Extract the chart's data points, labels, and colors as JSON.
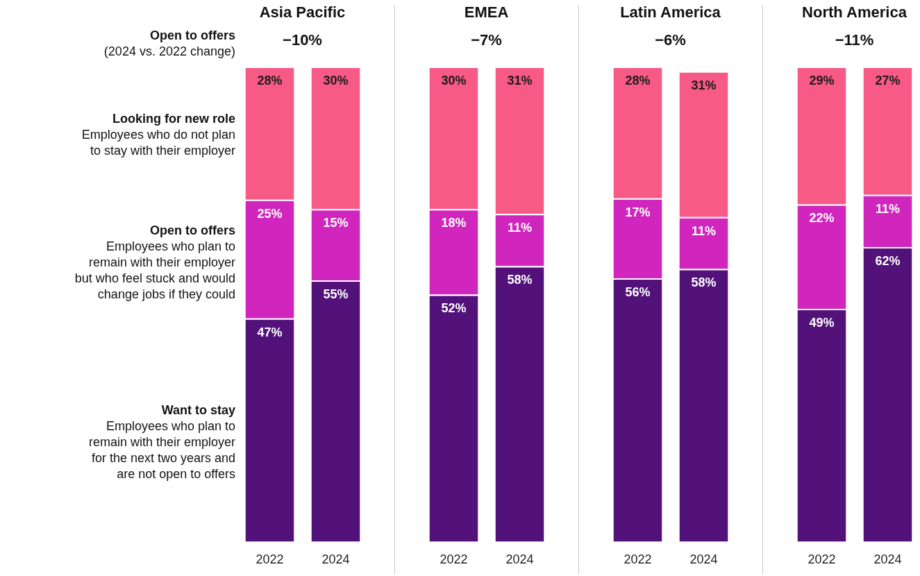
{
  "chart_data": [
    {
      "type": "bar",
      "title": "Asia Pacific",
      "subtitle": "−10%",
      "stacked": true,
      "categories": [
        "2022",
        "2024"
      ],
      "annotations": [
        "Open to offers",
        "(2024 vs. 2022 change)",
        "Employees who do not plan to stay with their employer",
        "Employees who plan to remain with their employer but who feel stuck and would change jobs if they could",
        "Employees who plan to remain with their employer for the next two years and are not open to offers"
      ],
      "series": [
        {
          "name": "Want to stay",
          "color": "#52127a",
          "values": [
            47,
            55
          ],
          "value_labels": [
            "47%",
            "55%"
          ]
        },
        {
          "name": "Open to offers",
          "color": "#d026bd",
          "values": [
            25,
            15
          ],
          "value_labels": [
            "25%",
            "15%"
          ]
        },
        {
          "name": "Looking for new role",
          "color": "#f75a85",
          "values": [
            28,
            30
          ],
          "value_labels": [
            "28%",
            "30%"
          ]
        }
      ]
    },
    {
      "type": "bar",
      "title": "EMEA",
      "subtitle": "−7%",
      "stacked": true,
      "categories": [
        "2022",
        "2024"
      ],
      "series": [
        {
          "color": "#52127a",
          "values": [
            52,
            58
          ],
          "value_labels": [
            "52%",
            "58%"
          ]
        },
        {
          "color": "#d026bd",
          "values": [
            18,
            11
          ],
          "value_labels": [
            "18%",
            "11%"
          ]
        },
        {
          "color": "#f75a85",
          "values": [
            30,
            31
          ],
          "value_labels": [
            "30%",
            "31%"
          ]
        }
      ]
    },
    {
      "type": "bar",
      "title": "Latin America",
      "subtitle": "−6%",
      "stacked": true,
      "categories": [
        "2022",
        "2024"
      ],
      "series": [
        {
          "color": "#52127a",
          "values": [
            56,
            58
          ],
          "value_labels": [
            "56%",
            "58%"
          ]
        },
        {
          "color": "#d026bd",
          "values": [
            17,
            11
          ],
          "value_labels": [
            "17%",
            "11%"
          ]
        },
        {
          "color": "#f75a85",
          "values": [
            28,
            31
          ],
          "value_labels": [
            "28%",
            "31%"
          ]
        }
      ]
    },
    {
      "type": "bar",
      "title": "North America",
      "subtitle": "−11%",
      "stacked": true,
      "categories": [
        "2022",
        "2024"
      ],
      "series": [
        {
          "color": "#52127a",
          "values": [
            49,
            62
          ],
          "value_labels": [
            "49%",
            "62%"
          ]
        },
        {
          "color": "#d026bd",
          "values": [
            22,
            11
          ],
          "value_labels": [
            "22%",
            "11%"
          ]
        },
        {
          "color": "#f75a85",
          "values": [
            29,
            27
          ],
          "value_labels": [
            "29%",
            "27%"
          ]
        }
      ]
    }
  ]
}
